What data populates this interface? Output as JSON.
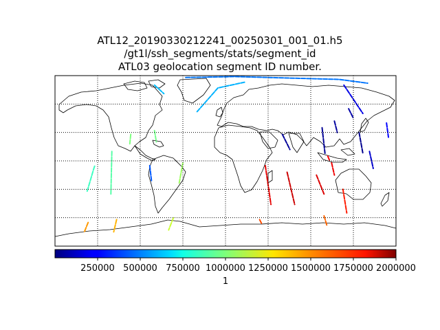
{
  "chart_data": {
    "type": "map",
    "title_lines": [
      "ATL12_20190330212241_00250301_001_01.h5",
      "/gt1l/ssh_segments/stats/segment_id",
      "ATL03 geolocation segment ID number."
    ],
    "projection": "plate-carree",
    "lon_range": [
      -180,
      180
    ],
    "lat_range": [
      -90,
      90
    ],
    "meridians": [
      -135,
      -90,
      -45,
      0,
      45,
      90,
      135
    ],
    "parallels": [
      -60,
      -30,
      0,
      30,
      60
    ],
    "grid": "dotted",
    "colormap": "jet",
    "colorbar": {
      "orientation": "horizontal",
      "placement": "bottom",
      "vmin": 1,
      "vmax": 2000000,
      "ticks": [
        250000,
        500000,
        750000,
        1000000,
        1250000,
        1500000,
        1750000,
        2000000
      ],
      "tick_labels": [
        "250000",
        "500000",
        "750000",
        "1000000",
        "1250000",
        "1500000",
        "1750000",
        "2000000"
      ],
      "label": "1"
    },
    "tracks": [
      {
        "value": 600000,
        "points": [
          [
            -30,
            52
          ],
          [
            -8,
            77
          ],
          [
            20,
            83
          ]
        ]
      },
      {
        "value": 620000,
        "points": [
          [
            -75,
            80
          ],
          [
            -65,
            71
          ]
        ]
      },
      {
        "value": 480000,
        "points": [
          [
            -42,
            88
          ],
          [
            10,
            89
          ],
          [
            120,
            86
          ],
          [
            150,
            82
          ]
        ]
      },
      {
        "value": 420000,
        "points": [
          [
            -80,
            -5
          ],
          [
            -78,
            -22
          ]
        ]
      },
      {
        "value": 870000,
        "points": [
          [
            -146,
            -32
          ],
          [
            -139,
            -8
          ],
          [
            -138,
            -5
          ]
        ]
      },
      {
        "value": 920000,
        "points": [
          [
            -120,
            10
          ],
          [
            -121,
            -35
          ]
        ]
      },
      {
        "value": 980000,
        "points": [
          [
            -75,
            32
          ],
          [
            -73,
            20
          ]
        ]
      },
      {
        "value": 1000000,
        "points": [
          [
            -100,
            28
          ],
          [
            -101,
            18
          ]
        ]
      },
      {
        "value": 1060000,
        "points": [
          [
            -45,
            -2
          ],
          [
            -49,
            -24
          ]
        ]
      },
      {
        "value": 1150000,
        "points": [
          [
            -55,
            -60
          ],
          [
            -60,
            -73
          ]
        ]
      },
      {
        "value": 1400000,
        "points": [
          [
            -115,
            -62
          ],
          [
            -118,
            -75
          ]
        ]
      },
      {
        "value": 1450000,
        "points": [
          [
            -145,
            -65
          ],
          [
            -149,
            -75
          ]
        ]
      },
      {
        "value": 1800000,
        "points": [
          [
            42,
            -5
          ],
          [
            48,
            -46
          ]
        ]
      },
      {
        "value": 1850000,
        "points": [
          [
            65,
            -12
          ],
          [
            73,
            -46
          ]
        ]
      },
      {
        "value": 1820000,
        "points": [
          [
            96,
            -15
          ],
          [
            104,
            -35
          ]
        ]
      },
      {
        "value": 1780000,
        "points": [
          [
            112,
            -2
          ],
          [
            115,
            -15
          ]
        ]
      },
      {
        "value": 1750000,
        "points": [
          [
            108,
            5
          ],
          [
            110,
            0
          ]
        ]
      },
      {
        "value": 1700000,
        "points": [
          [
            124,
            -30
          ],
          [
            128,
            -55
          ]
        ]
      },
      {
        "value": 1550000,
        "points": [
          [
            104,
            -58
          ],
          [
            107,
            -68
          ]
        ]
      },
      {
        "value": 1600000,
        "points": [
          [
            36,
            -62
          ],
          [
            38,
            -66
          ]
        ]
      },
      {
        "value": 80000,
        "points": [
          [
            130,
            55
          ],
          [
            135,
            45
          ]
        ]
      },
      {
        "value": 60000,
        "points": [
          [
            115,
            42
          ],
          [
            118,
            30
          ]
        ]
      },
      {
        "value": 50000,
        "points": [
          [
            60,
            28
          ],
          [
            68,
            12
          ]
        ]
      },
      {
        "value": 40000,
        "points": [
          [
            102,
            35
          ],
          [
            105,
            8
          ]
        ]
      },
      {
        "value": 30000,
        "points": [
          [
            141,
            30
          ],
          [
            145,
            8
          ]
        ]
      },
      {
        "value": 200000,
        "points": [
          [
            125,
            80
          ],
          [
            145,
            50
          ]
        ]
      },
      {
        "value": 250000,
        "points": [
          [
            170,
            40
          ],
          [
            172,
            25
          ]
        ]
      },
      {
        "value": 150000,
        "points": [
          [
            152,
            10
          ],
          [
            156,
            -8
          ]
        ]
      }
    ]
  }
}
